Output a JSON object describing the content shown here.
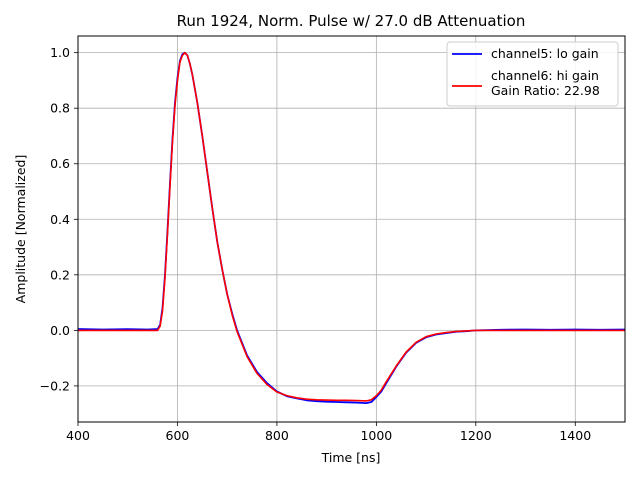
{
  "chart_data": {
    "type": "line",
    "title": "Run 1924, Norm. Pulse w/ 27.0 dB Attenuation",
    "xlabel": "Time [ns]",
    "ylabel": "Amplitude [Normalized]",
    "xlim": [
      400,
      1500
    ],
    "ylim": [
      -0.33,
      1.06
    ],
    "xticks": [
      400,
      600,
      800,
      1000,
      1200,
      1400
    ],
    "xtick_labels": [
      "400",
      "600",
      "800",
      "1000",
      "1200",
      "1400"
    ],
    "yticks": [
      -0.2,
      0.0,
      0.2,
      0.4,
      0.6,
      0.8,
      1.0
    ],
    "ytick_labels": [
      "−0.2",
      "0.0",
      "0.2",
      "0.4",
      "0.6",
      "0.8",
      "1.0"
    ],
    "grid": true,
    "legend_position": "top-right",
    "series": [
      {
        "name": "channel5: lo gain",
        "color": "#0000ff",
        "x": [
          400,
          450,
          500,
          540,
          560,
          565,
          570,
          575,
          580,
          585,
          590,
          595,
          600,
          605,
          610,
          615,
          620,
          625,
          630,
          640,
          650,
          660,
          670,
          680,
          690,
          700,
          710,
          720,
          740,
          760,
          780,
          800,
          820,
          840,
          860,
          880,
          900,
          920,
          940,
          960,
          980,
          990,
          1000,
          1010,
          1020,
          1040,
          1060,
          1080,
          1100,
          1120,
          1140,
          1160,
          1180,
          1200,
          1250,
          1300,
          1350,
          1400,
          1450,
          1500
        ],
        "y": [
          0.005,
          0.003,
          0.004,
          0.003,
          0.005,
          0.02,
          0.08,
          0.2,
          0.36,
          0.53,
          0.69,
          0.82,
          0.91,
          0.97,
          0.995,
          1.0,
          0.99,
          0.96,
          0.92,
          0.82,
          0.7,
          0.57,
          0.44,
          0.32,
          0.22,
          0.13,
          0.06,
          0.0,
          -0.09,
          -0.15,
          -0.19,
          -0.22,
          -0.237,
          -0.245,
          -0.252,
          -0.255,
          -0.257,
          -0.258,
          -0.259,
          -0.26,
          -0.262,
          -0.258,
          -0.24,
          -0.22,
          -0.19,
          -0.13,
          -0.08,
          -0.045,
          -0.025,
          -0.015,
          -0.01,
          -0.005,
          -0.003,
          0.0,
          0.002,
          0.003,
          0.002,
          0.003,
          0.002,
          0.003
        ]
      },
      {
        "name": "channel6: hi gain\nGain Ratio: 22.98",
        "color": "#ff0000",
        "x": [
          400,
          450,
          500,
          540,
          560,
          565,
          570,
          575,
          580,
          585,
          590,
          595,
          600,
          605,
          610,
          615,
          620,
          625,
          630,
          640,
          650,
          660,
          670,
          680,
          690,
          700,
          710,
          720,
          740,
          760,
          780,
          800,
          820,
          840,
          860,
          880,
          900,
          920,
          940,
          960,
          980,
          990,
          1000,
          1010,
          1020,
          1040,
          1060,
          1080,
          1100,
          1120,
          1140,
          1160,
          1180,
          1200,
          1250,
          1300,
          1350,
          1400,
          1450,
          1500
        ],
        "y": [
          0.0,
          0.0,
          0.0,
          0.0,
          0.0,
          0.015,
          0.07,
          0.19,
          0.35,
          0.52,
          0.68,
          0.81,
          0.9,
          0.965,
          0.99,
          1.0,
          0.99,
          0.96,
          0.92,
          0.82,
          0.7,
          0.57,
          0.44,
          0.32,
          0.22,
          0.13,
          0.055,
          -0.005,
          -0.095,
          -0.155,
          -0.195,
          -0.222,
          -0.235,
          -0.243,
          -0.248,
          -0.25,
          -0.251,
          -0.252,
          -0.252,
          -0.253,
          -0.254,
          -0.25,
          -0.235,
          -0.215,
          -0.185,
          -0.128,
          -0.078,
          -0.043,
          -0.023,
          -0.013,
          -0.008,
          -0.004,
          -0.002,
          0.0,
          0.0,
          0.0,
          0.0,
          0.0,
          0.0,
          0.0
        ]
      }
    ]
  }
}
